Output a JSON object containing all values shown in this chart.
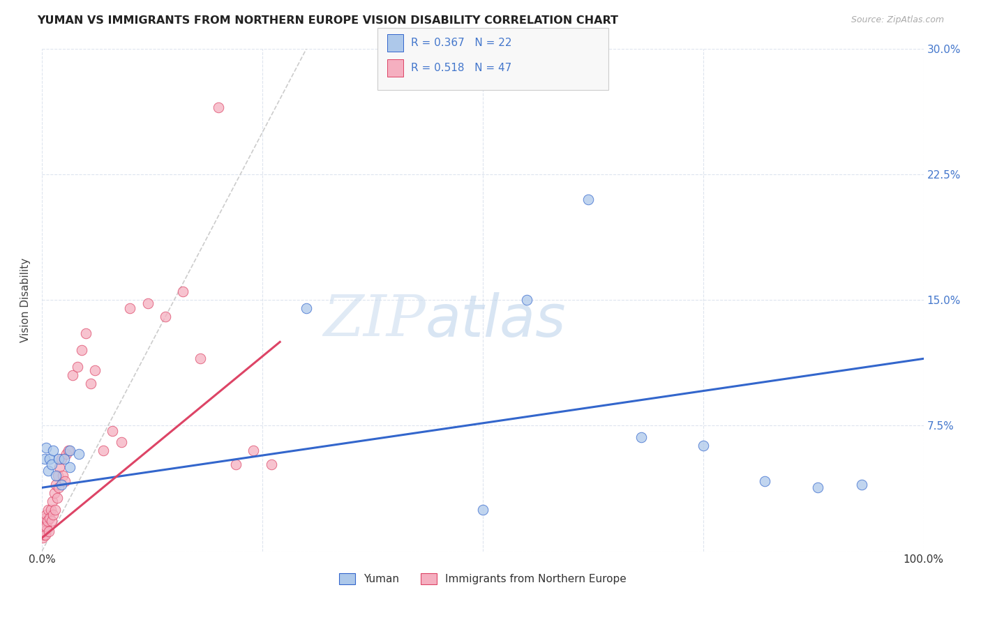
{
  "title": "YUMAN VS IMMIGRANTS FROM NORTHERN EUROPE VISION DISABILITY CORRELATION CHART",
  "source": "Source: ZipAtlas.com",
  "ylabel": "Vision Disability",
  "xlim": [
    0,
    1.0
  ],
  "ylim": [
    0,
    0.3
  ],
  "xtick_vals": [
    0.0,
    0.25,
    0.5,
    0.75,
    1.0
  ],
  "xtick_labels": [
    "0.0%",
    "",
    "",
    "",
    "100.0%"
  ],
  "ytick_vals": [
    0.0,
    0.075,
    0.15,
    0.225,
    0.3
  ],
  "ytick_labels": [
    "",
    "7.5%",
    "15.0%",
    "22.5%",
    "30.0%"
  ],
  "blue_label": "Yuman",
  "pink_label": "Immigrants from Northern Europe",
  "blue_R": "0.367",
  "blue_N": "22",
  "pink_R": "0.518",
  "pink_N": "47",
  "blue_color": "#adc8ea",
  "pink_color": "#f5afc0",
  "blue_line_color": "#3366cc",
  "pink_line_color": "#dd4466",
  "ref_line_color": "#cccccc",
  "watermark_text": "ZIPatlas",
  "watermark_color": "#dce8f5",
  "blue_points_x": [
    0.003,
    0.005,
    0.007,
    0.009,
    0.011,
    0.013,
    0.016,
    0.019,
    0.022,
    0.032,
    0.042,
    0.032,
    0.025,
    0.3,
    0.5,
    0.55,
    0.62,
    0.68,
    0.75,
    0.82,
    0.88,
    0.93
  ],
  "blue_points_y": [
    0.055,
    0.062,
    0.048,
    0.055,
    0.052,
    0.06,
    0.045,
    0.055,
    0.04,
    0.06,
    0.058,
    0.05,
    0.055,
    0.145,
    0.025,
    0.15,
    0.21,
    0.068,
    0.063,
    0.042,
    0.038,
    0.04
  ],
  "pink_points_x": [
    0.001,
    0.002,
    0.002,
    0.003,
    0.003,
    0.004,
    0.004,
    0.005,
    0.005,
    0.006,
    0.007,
    0.008,
    0.009,
    0.01,
    0.011,
    0.012,
    0.013,
    0.014,
    0.015,
    0.016,
    0.017,
    0.018,
    0.019,
    0.02,
    0.022,
    0.024,
    0.026,
    0.028,
    0.03,
    0.035,
    0.04,
    0.045,
    0.05,
    0.055,
    0.06,
    0.07,
    0.08,
    0.09,
    0.1,
    0.12,
    0.14,
    0.16,
    0.18,
    0.2,
    0.22,
    0.24,
    0.26
  ],
  "pink_points_y": [
    0.008,
    0.01,
    0.015,
    0.012,
    0.018,
    0.01,
    0.02,
    0.015,
    0.022,
    0.018,
    0.025,
    0.012,
    0.02,
    0.025,
    0.018,
    0.03,
    0.022,
    0.035,
    0.025,
    0.04,
    0.032,
    0.045,
    0.038,
    0.05,
    0.055,
    0.045,
    0.042,
    0.058,
    0.06,
    0.105,
    0.11,
    0.12,
    0.13,
    0.1,
    0.108,
    0.06,
    0.072,
    0.065,
    0.145,
    0.148,
    0.14,
    0.155,
    0.115,
    0.265,
    0.052,
    0.06,
    0.052
  ],
  "blue_trend_x": [
    0.0,
    1.0
  ],
  "blue_trend_y_start": 0.038,
  "blue_trend_y_end": 0.115,
  "pink_trend_x": [
    0.0,
    0.27
  ],
  "pink_trend_y_start": 0.008,
  "pink_trend_y_end": 0.125
}
